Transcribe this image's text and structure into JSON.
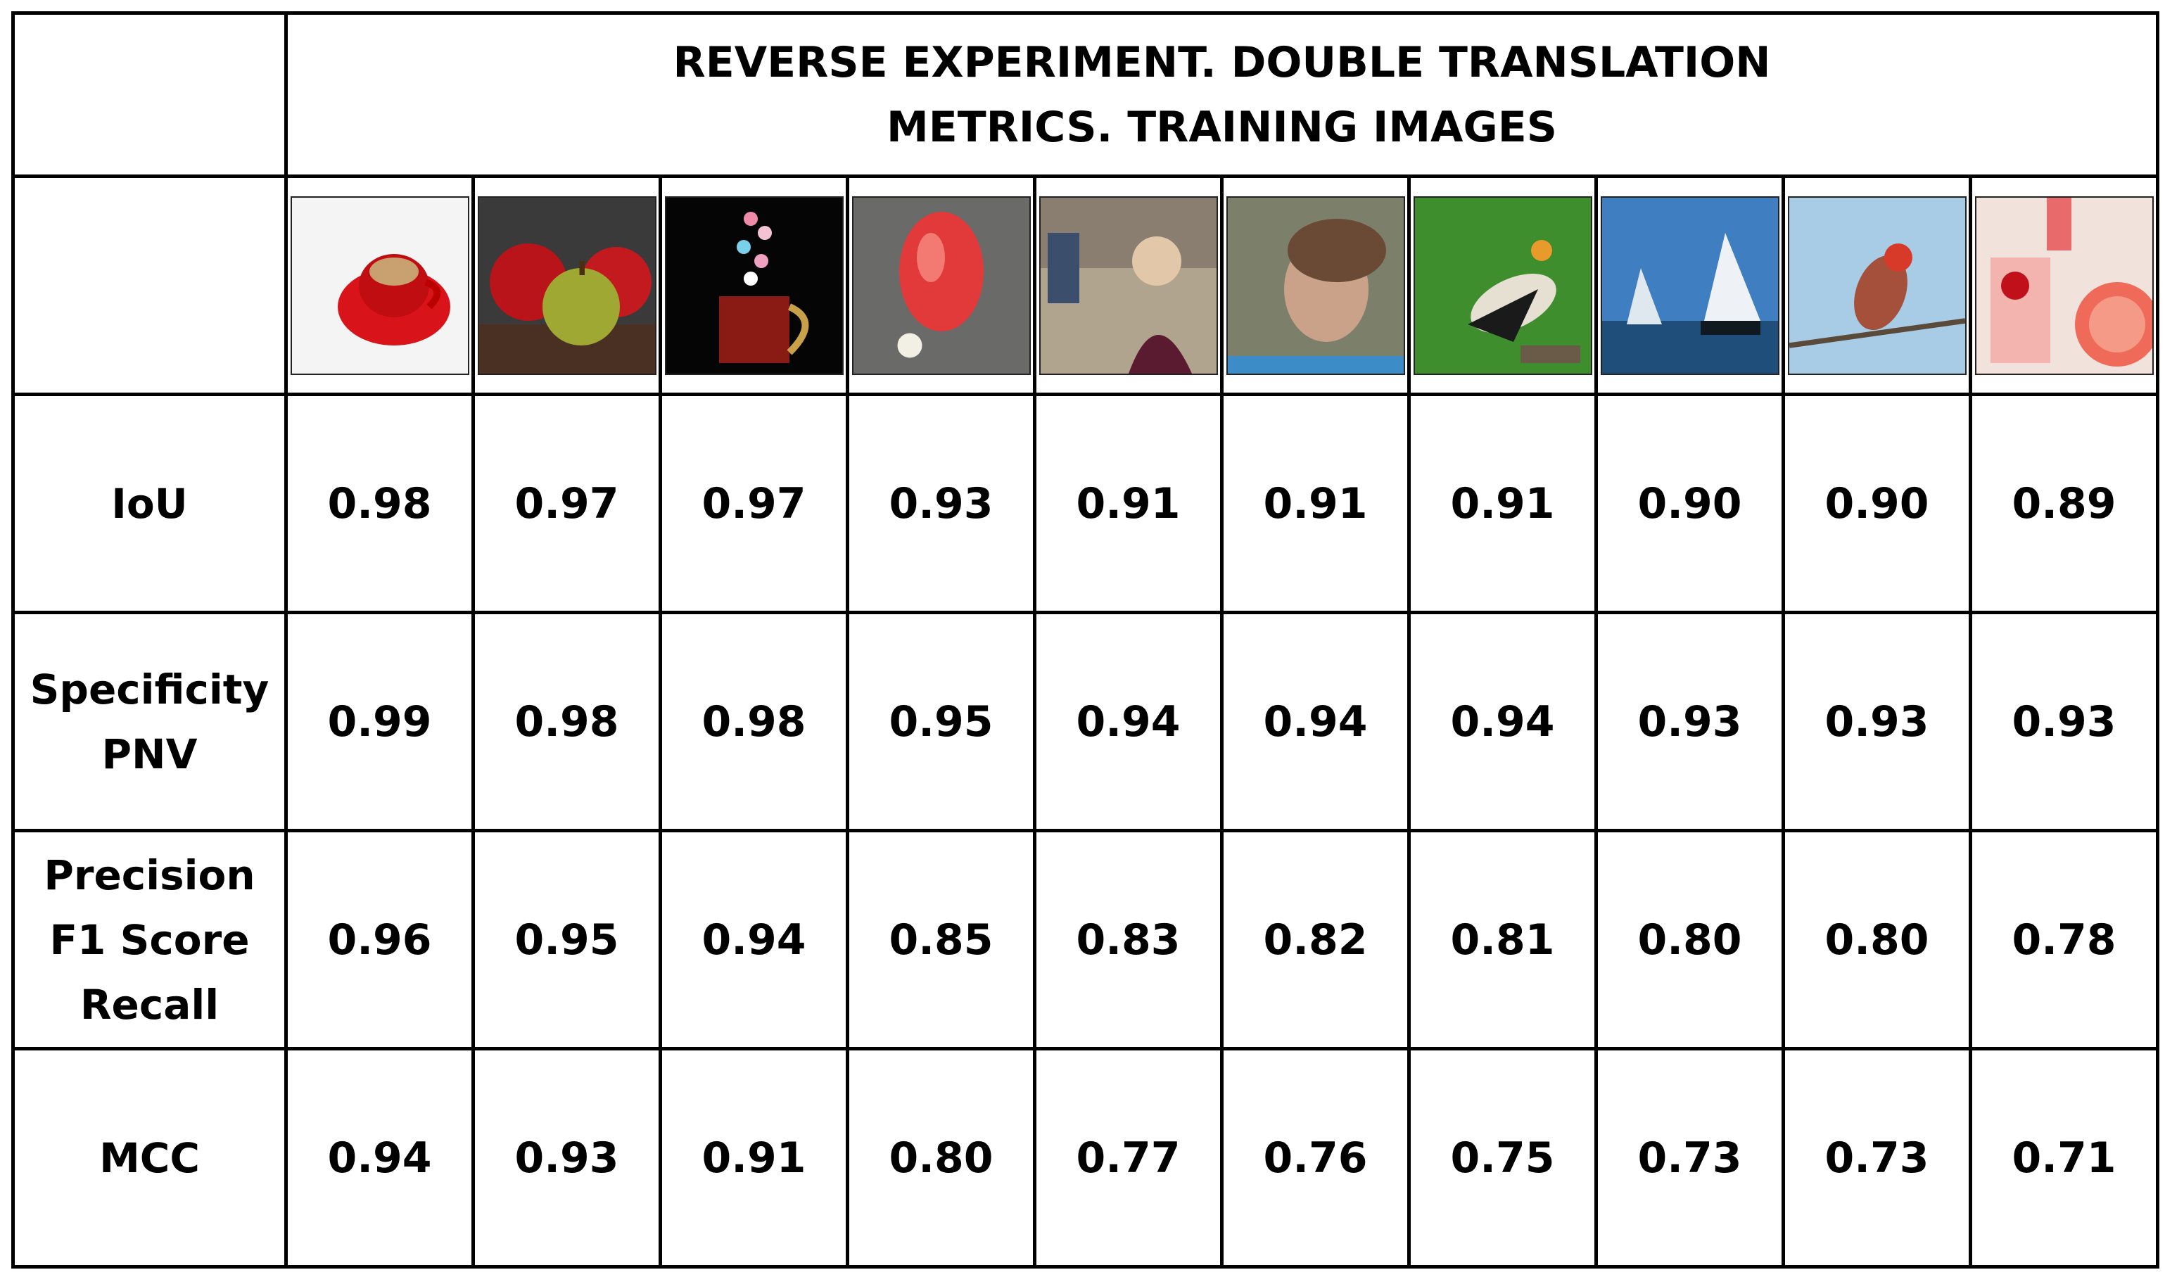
{
  "title_lines": [
    "REVERSE EXPERIMENT. DOUBLE TRANSLATION",
    "METRICS. TRAINING IMAGES"
  ],
  "images": [
    {
      "subject": "red cup and saucer"
    },
    {
      "subject": "apples"
    },
    {
      "subject": "mug with hearts"
    },
    {
      "subject": "red object"
    },
    {
      "subject": "woman at desk"
    },
    {
      "subject": "girl profile"
    },
    {
      "subject": "vulture on grass"
    },
    {
      "subject": "sailing ships"
    },
    {
      "subject": "bird on branch"
    },
    {
      "subject": "grapefruit drink"
    }
  ],
  "rows": [
    {
      "label_lines": [
        "IoU"
      ],
      "values": [
        "0.98",
        "0.97",
        "0.97",
        "0.93",
        "0.91",
        "0.91",
        "0.91",
        "0.90",
        "0.90",
        "0.89"
      ]
    },
    {
      "label_lines": [
        "Specificity",
        "PNV"
      ],
      "values": [
        "0.99",
        "0.98",
        "0.98",
        "0.95",
        "0.94",
        "0.94",
        "0.94",
        "0.93",
        "0.93",
        "0.93"
      ]
    },
    {
      "label_lines": [
        "Precision",
        "F1 Score",
        "Recall"
      ],
      "values": [
        "0.96",
        "0.95",
        "0.94",
        "0.85",
        "0.83",
        "0.82",
        "0.81",
        "0.80",
        "0.80",
        "0.78"
      ]
    },
    {
      "label_lines": [
        "MCC"
      ],
      "values": [
        "0.94",
        "0.93",
        "0.91",
        "0.80",
        "0.77",
        "0.76",
        "0.75",
        "0.73",
        "0.73",
        "0.71"
      ]
    }
  ]
}
